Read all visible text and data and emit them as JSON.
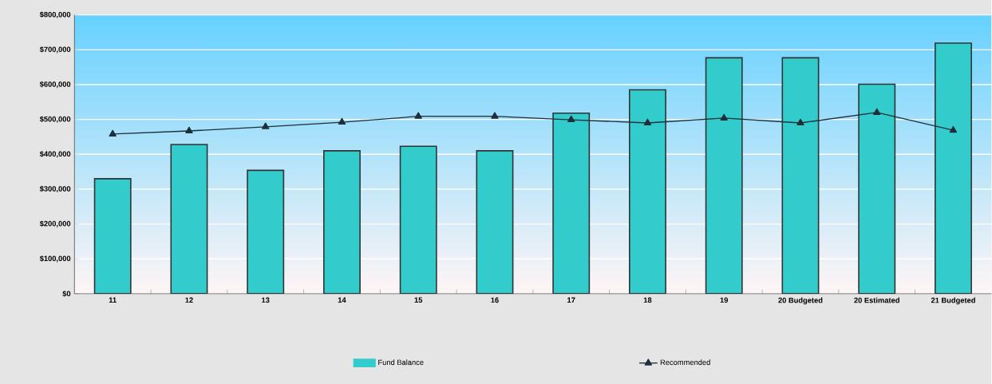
{
  "chart_data": {
    "type": "bar",
    "categories": [
      "11",
      "12",
      "13",
      "14",
      "15",
      "16",
      "17",
      "18",
      "19",
      "20 Budgeted",
      "20 Estimated",
      "21 Budgeted"
    ],
    "series": [
      {
        "name": "Fund Balance",
        "color": "#33cccc",
        "values": [
          330000,
          428000,
          354000,
          410000,
          423000,
          410000,
          518000,
          585000,
          677000,
          677000,
          601000,
          719000
        ]
      },
      {
        "name": "Recommended",
        "type": "line",
        "color": "#1f2f3a",
        "marker": "triangle",
        "values": [
          458000,
          467000,
          479000,
          492000,
          509000,
          509000,
          499000,
          490000,
          504000,
          490000,
          520000,
          469000
        ]
      }
    ],
    "ylim": [
      0,
      800000
    ],
    "yticks": [
      {
        "value": 0,
        "label": "$0"
      },
      {
        "value": 100000,
        "label": "$100,000"
      },
      {
        "value": 200000,
        "label": "$200,000"
      },
      {
        "value": 300000,
        "label": "$300,000"
      },
      {
        "value": 400000,
        "label": "$400,000"
      },
      {
        "value": 500000,
        "label": "$500,000"
      },
      {
        "value": 600000,
        "label": "$600,000"
      },
      {
        "value": 700000,
        "label": "$700,000"
      },
      {
        "value": 800000,
        "label": "$800,000"
      }
    ],
    "grid": "y",
    "legend": "bottom"
  }
}
